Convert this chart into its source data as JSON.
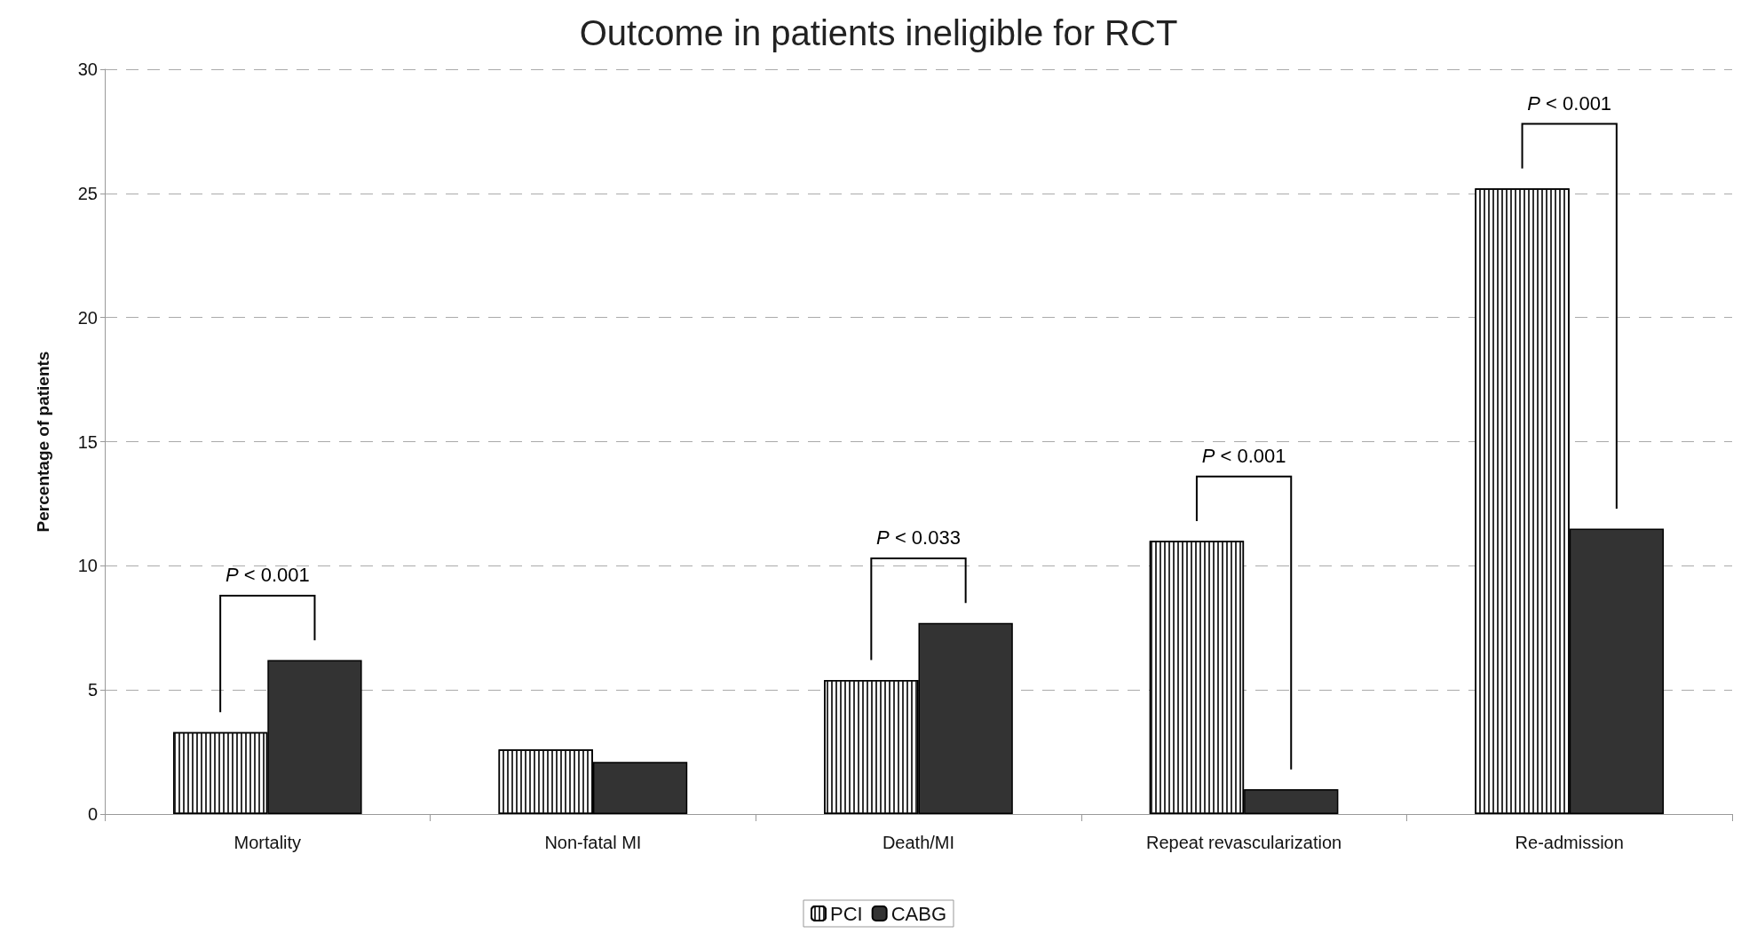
{
  "chart_data": {
    "type": "bar",
    "title": "Outcome in patients ineligible for RCT",
    "ylabel": "Percentage of patients",
    "categories": [
      "Mortality",
      "Non-fatal MI",
      "Death/MI",
      "Repeat revascularization",
      "Re-admission"
    ],
    "series": [
      {
        "name": "PCI",
        "color": "#ffffff",
        "values": [
          3.3,
          2.6,
          5.4,
          11.0,
          25.2
        ]
      },
      {
        "name": "CABG",
        "color": "#333333",
        "values": [
          6.2,
          2.1,
          7.7,
          1.0,
          11.5
        ]
      }
    ],
    "ylim": [
      0,
      30
    ],
    "yticks": [
      0,
      5,
      10,
      15,
      20,
      25,
      30
    ],
    "grid": "y",
    "legend": "bottom",
    "annotations": [
      "P < 0.001",
      "P < 0.033",
      "P < 0.001",
      "P < 0.001"
    ]
  }
}
